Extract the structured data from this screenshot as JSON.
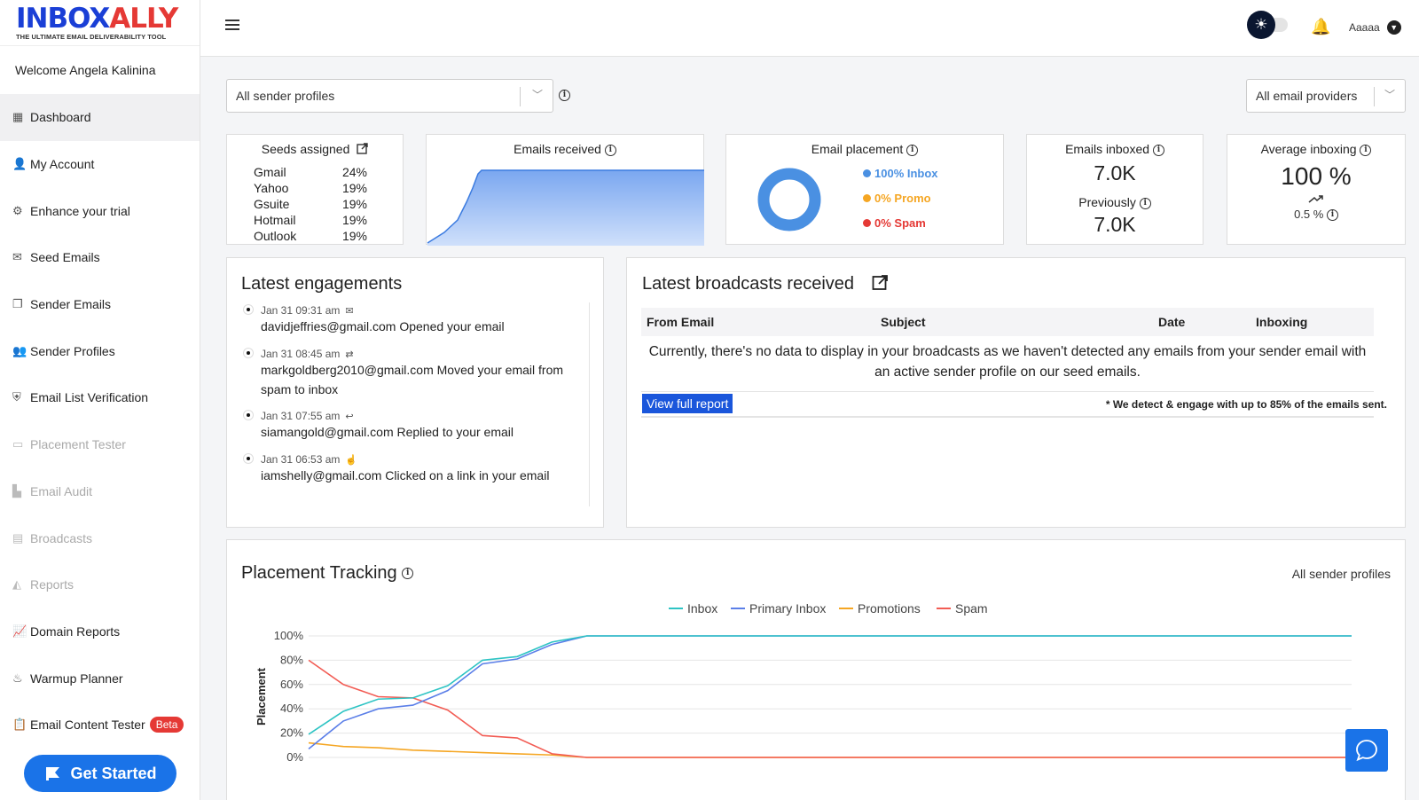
{
  "brand": {
    "logo_main_1": "INBOX",
    "logo_main_2": "ALLY",
    "logo_sub": "THE ULTIMATE EMAIL DELIVERABILITY TOOL"
  },
  "sidebar": {
    "welcome": "Welcome Angela Kalinina",
    "items": [
      {
        "label": "Dashboard",
        "icon": "dashboard-icon"
      },
      {
        "label": "My Account",
        "icon": "person-icon"
      },
      {
        "label": "Enhance your trial",
        "icon": "gear-badge-icon"
      },
      {
        "label": "Seed Emails",
        "icon": "envelope-icon"
      },
      {
        "label": "Sender Emails",
        "icon": "copy-icon"
      },
      {
        "label": "Sender Profiles",
        "icon": "people-icon"
      },
      {
        "label": "Email List Verification",
        "icon": "shield-check-icon"
      },
      {
        "label": "Placement Tester",
        "icon": "monitor-icon"
      },
      {
        "label": "Email Audit",
        "icon": "bar-chart-icon"
      },
      {
        "label": "Broadcasts",
        "icon": "broadcast-icon"
      },
      {
        "label": "Reports",
        "icon": "area-chart-icon"
      },
      {
        "label": "Domain Reports",
        "icon": "line-chart-icon"
      },
      {
        "label": "Warmup Planner",
        "icon": "warmup-icon"
      },
      {
        "label": "Email Content Tester",
        "icon": "clipboard-icon",
        "badge": "Beta"
      }
    ],
    "get_started": "Get Started"
  },
  "topbar": {
    "username": "Aaaaa"
  },
  "filters": {
    "sender_profiles": "All sender profiles",
    "email_providers": "All email providers"
  },
  "seeds": {
    "title": "Seeds assigned",
    "rows": [
      {
        "provider": "Gmail",
        "pct": "24%"
      },
      {
        "provider": "Yahoo",
        "pct": "19%"
      },
      {
        "provider": "Gsuite",
        "pct": "19%"
      },
      {
        "provider": "Hotmail",
        "pct": "19%"
      },
      {
        "provider": "Outlook",
        "pct": "19%"
      }
    ]
  },
  "emails_received": {
    "title": "Emails received"
  },
  "placement": {
    "title": "Email placement",
    "inbox": "100% Inbox",
    "promo": "0% Promo",
    "spam": "0% Spam",
    "colors": {
      "inbox": "#4a90e2",
      "promo": "#f5a623",
      "spam": "#e53935"
    }
  },
  "inboxed": {
    "title": "Emails inboxed",
    "value": "7.0K",
    "prev_label": "Previously",
    "prev_value": "7.0K"
  },
  "avg_inboxing": {
    "title": "Average inboxing",
    "value": "100 %",
    "change": "0.5 %"
  },
  "engagements": {
    "title": "Latest engagements",
    "items": [
      {
        "time": "Jan 31 09:31 am",
        "icon": "open-envelope-icon",
        "text": "davidjeffries@gmail.com Opened your email"
      },
      {
        "time": "Jan 31 08:45 am",
        "icon": "move-icon",
        "text": "markgoldberg2010@gmail.com Moved your email from spam to inbox"
      },
      {
        "time": "Jan 31 07:55 am",
        "icon": "reply-icon",
        "text": "siamangold@gmail.com Replied to your email"
      },
      {
        "time": "Jan 31 06:53 am",
        "icon": "click-icon",
        "text": "iamshelly@gmail.com Clicked on a link in your email"
      }
    ]
  },
  "broadcasts": {
    "title": "Latest broadcasts received",
    "columns": [
      "From Email",
      "Subject",
      "Date",
      "Inboxing"
    ],
    "empty_msg": "Currently, there's no data to display in your broadcasts as we haven't detected any emails from your sender email with an active sender profile on our seed emails.",
    "view_report": "View full report",
    "note": "* We detect & engage with up to 85% of the emails sent."
  },
  "placement_tracking": {
    "title": "Placement Tracking",
    "filter": "All sender profiles"
  },
  "chart_data": {
    "type": "line",
    "ylabel": "Placement",
    "ylim": [
      0,
      100
    ],
    "yticks": [
      "0%",
      "20%",
      "40%",
      "60%",
      "80%",
      "100%"
    ],
    "x": [
      0,
      1,
      2,
      3,
      4,
      5,
      6,
      7,
      8,
      9,
      10,
      11,
      12,
      13,
      14,
      15,
      16,
      17,
      18,
      19,
      20,
      21,
      22,
      23,
      24,
      25,
      26,
      27,
      28,
      29,
      30
    ],
    "series": [
      {
        "name": "Inbox",
        "color": "#2ec4c4",
        "values": [
          19,
          38,
          48,
          49,
          59,
          80,
          83,
          95,
          100,
          100,
          100,
          100,
          100,
          100,
          100,
          100,
          100,
          100,
          100,
          100,
          100,
          100,
          100,
          100,
          100,
          100,
          100,
          100,
          100,
          100,
          100
        ]
      },
      {
        "name": "Primary Inbox",
        "color": "#5b7fe8",
        "values": [
          7,
          30,
          40,
          43,
          55,
          77,
          81,
          93,
          100,
          100,
          100,
          100,
          100,
          100,
          100,
          100,
          100,
          100,
          100,
          100,
          100,
          100,
          100,
          100,
          100,
          100,
          100,
          100,
          100,
          100,
          100
        ]
      },
      {
        "name": "Promotions",
        "color": "#f5a623",
        "values": [
          12,
          9,
          8,
          6,
          5,
          4,
          3,
          2,
          0,
          0,
          0,
          0,
          0,
          0,
          0,
          0,
          0,
          0,
          0,
          0,
          0,
          0,
          0,
          0,
          0,
          0,
          0,
          0,
          0,
          0,
          0
        ]
      },
      {
        "name": "Spam",
        "color": "#f25c54",
        "values": [
          80,
          60,
          50,
          49,
          39,
          18,
          16,
          3,
          0,
          0,
          0,
          0,
          0,
          0,
          0,
          0,
          0,
          0,
          0,
          0,
          0,
          0,
          0,
          0,
          0,
          0,
          0,
          0,
          0,
          0,
          0
        ]
      }
    ]
  }
}
